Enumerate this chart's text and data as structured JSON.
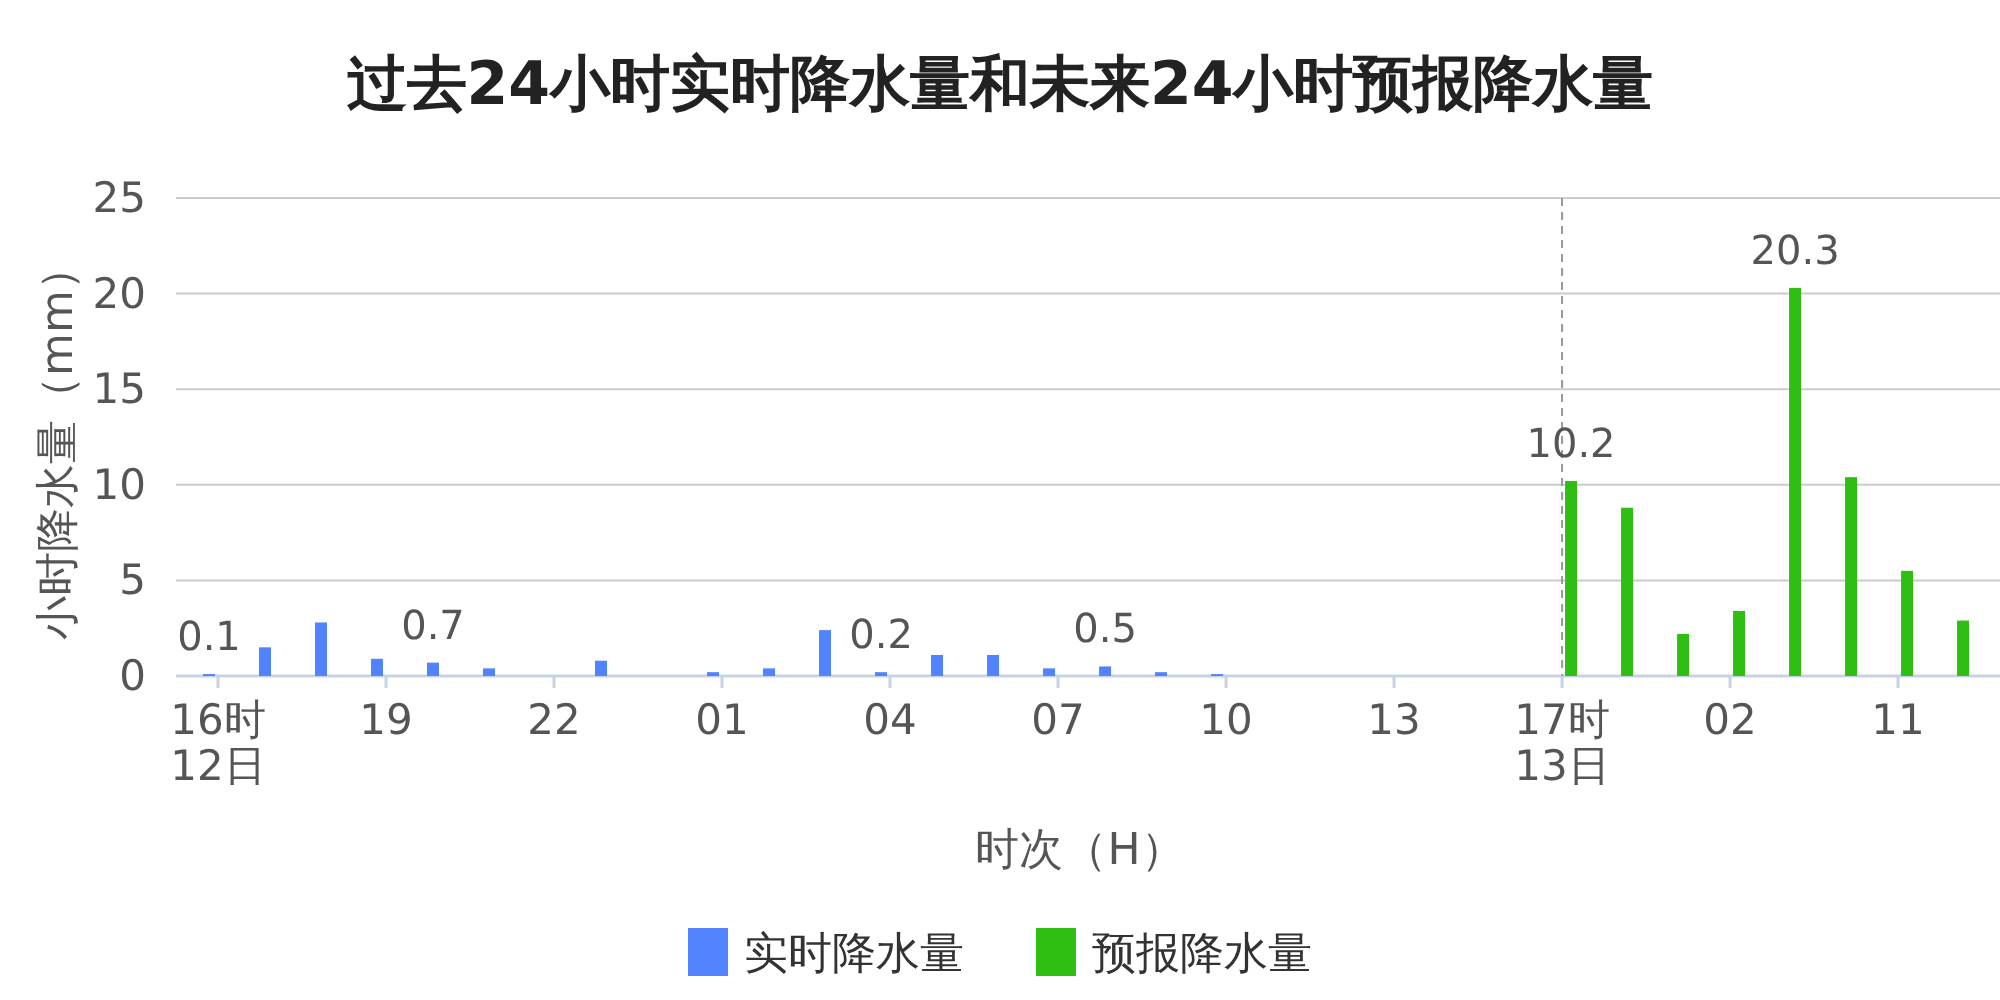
{
  "chart_data": {
    "type": "bar",
    "title": "过去24小时实时降水量和未来24小时预报降水量",
    "xlabel": "时次（H）",
    "ylabel": "小时降水量（mm）",
    "categories": [
      "16时\n12日",
      null,
      null,
      "19",
      null,
      null,
      "22",
      null,
      null,
      "01",
      null,
      null,
      "04",
      null,
      null,
      "07",
      null,
      null,
      "10",
      null,
      null,
      "13",
      null,
      null,
      "17时\n13日",
      null,
      null,
      "02",
      null,
      null,
      "11",
      null
    ],
    "series": [
      {
        "name": "实时降水量",
        "color": "#5283ff",
        "values": [
          0.1,
          1.5,
          2.8,
          0.9,
          0.7,
          0.4,
          0,
          0.8,
          0,
          0.2,
          0.4,
          2.4,
          0.2,
          1.1,
          1.1,
          0.4,
          0.5,
          0.2,
          0.1,
          0,
          0,
          0,
          0,
          0,
          null,
          null,
          null,
          null,
          null,
          null,
          null,
          null
        ],
        "value_labels": [
          "0.1",
          null,
          null,
          null,
          "0.7",
          null,
          null,
          null,
          null,
          null,
          null,
          null,
          "0.2",
          null,
          null,
          null,
          "0.5",
          null,
          null,
          null,
          null,
          null,
          null,
          null,
          null,
          null,
          null,
          null,
          null,
          null,
          null,
          null
        ]
      },
      {
        "name": "预报降水量",
        "color": "#2fbf12",
        "values": [
          null,
          null,
          null,
          null,
          null,
          null,
          null,
          null,
          null,
          null,
          null,
          null,
          null,
          null,
          null,
          null,
          null,
          null,
          null,
          null,
          null,
          null,
          null,
          null,
          10.2,
          8.8,
          2.2,
          3.4,
          20.3,
          10.4,
          5.5,
          2.9
        ],
        "value_labels": [
          null,
          null,
          null,
          null,
          null,
          null,
          null,
          null,
          null,
          null,
          null,
          null,
          null,
          null,
          null,
          null,
          null,
          null,
          null,
          null,
          null,
          null,
          null,
          null,
          "10.2",
          null,
          null,
          null,
          "20.3",
          null,
          null,
          null
        ]
      }
    ],
    "ylim": [
      0,
      25
    ],
    "yticks": [
      0,
      5,
      10,
      15,
      20,
      25
    ],
    "grid": "y",
    "legend": "bottom",
    "ref_lines": [
      {
        "axis": "x",
        "value": "17时\n13日",
        "color": "#999999",
        "line_style": "dashed"
      }
    ]
  }
}
